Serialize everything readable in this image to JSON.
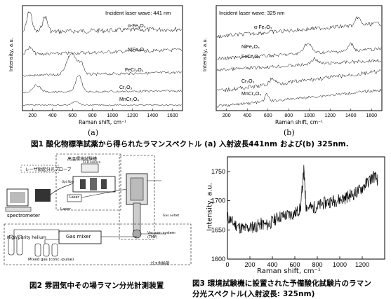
{
  "figure1": {
    "caption": "図1 酸化物標準試薬から得られたラマンスペクトル (a) 入射波長441nm および(b) 325nm.",
    "panel_a": {
      "letter": "(a)",
      "inset": "Incident laser wave: 441 nm",
      "xlabel": "Raman shift, cm⁻¹",
      "ylabel": "Intensity, a.u.",
      "xticks": [
        "200",
        "400",
        "600",
        "800",
        "1000",
        "1200",
        "1400",
        "1600"
      ],
      "series": [
        {
          "label": "α-Fe₂O₃"
        },
        {
          "label": "NiFe₂O₄"
        },
        {
          "label": "FeCr₂O₄"
        },
        {
          "label": "Cr₂O₃"
        },
        {
          "label": "MnCr₂O₄"
        }
      ]
    },
    "panel_b": {
      "letter": "(b)",
      "inset": "Incident laser wave: 325 nm",
      "xlabel": "Raman shift, cm⁻¹",
      "ylabel": "Intensity, a.u.",
      "xticks": [
        "200",
        "400",
        "600",
        "800",
        "1000",
        "1200",
        "1400",
        "1600"
      ],
      "series": [
        {
          "label": "α-Fe₂O₃"
        },
        {
          "label": "NiFe₂O₄"
        },
        {
          "label": "FeCr₂O₄"
        },
        {
          "label": "Cr₂O₃"
        },
        {
          "label": "MnCr₂O₄"
        }
      ]
    }
  },
  "figure2": {
    "caption": "図2 雰囲気中その場ラマン分光計測装置",
    "labels": {
      "top_box": "高温環境試験槽",
      "probe": "レーザ励起分光プローブ",
      "ccd": "CCD camera",
      "spectrometer": "spectrometer",
      "laser_box": "Laser",
      "laser": "Laser",
      "fiber": "Opt.fiber",
      "helium": "High purity helium",
      "mixer": "Gas mixer",
      "mixed": "Mixed gas (conc.-pulse)",
      "gas_outlet": "Gas outlet",
      "vacuum": "Vacuum system (TMP)",
      "bottom_label": "ガス供給部"
    }
  },
  "figure3": {
    "caption_line1": "図3 環境試験機に設置された予備酸化試験片のラマン",
    "caption_line2": "分光スペクトル(入射波長: 325nm)",
    "chart_data": {
      "type": "line",
      "xlabel": "Raman shift, cm⁻¹",
      "ylabel": "Intensity, a.u.",
      "xlim": [
        0,
        1400
      ],
      "ylim": [
        1600,
        1775
      ],
      "xticks": [
        0,
        200,
        400,
        600,
        800,
        1000,
        1200
      ],
      "yticks": [
        1600,
        1650,
        1700,
        1750
      ],
      "x": [
        0,
        50,
        100,
        150,
        200,
        250,
        300,
        350,
        400,
        450,
        500,
        550,
        600,
        650,
        680,
        700,
        750,
        800,
        850,
        900,
        950,
        1000,
        1050,
        1100,
        1150,
        1200,
        1250,
        1300,
        1340
      ],
      "y": [
        1672,
        1662,
        1655,
        1652,
        1654,
        1656,
        1660,
        1658,
        1664,
        1672,
        1674,
        1676,
        1678,
        1686,
        1752,
        1690,
        1688,
        1690,
        1695,
        1698,
        1700,
        1702,
        1705,
        1710,
        1714,
        1722,
        1732,
        1742,
        1735
      ]
    }
  }
}
